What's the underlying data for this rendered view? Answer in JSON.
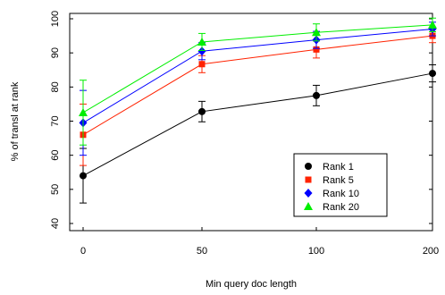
{
  "chart_data": {
    "type": "line",
    "xlabel": "Min query doc length",
    "ylabel": "% of transl at rank",
    "categories": [
      "0",
      "50",
      "100",
      "200"
    ],
    "x_tick_labels": [
      "0",
      "50",
      "100",
      "200"
    ],
    "y_tick_labels": [
      "40",
      "50",
      "60",
      "70",
      "80",
      "90",
      "100"
    ],
    "ylim": [
      40,
      100
    ],
    "grid": false,
    "legend_position": "bottom-right",
    "series": [
      {
        "name": "Rank 1",
        "color": "#000000",
        "marker": "circle",
        "values": [
          54,
          72.8,
          77.5,
          84
        ],
        "errors": [
          8,
          3,
          3,
          2.5
        ]
      },
      {
        "name": "Rank 5",
        "color": "#ff2200",
        "marker": "square",
        "values": [
          66,
          86.7,
          91,
          95
        ],
        "errors": [
          9,
          2.5,
          2.5,
          2
        ]
      },
      {
        "name": "Rank 10",
        "color": "#0000ff",
        "marker": "diamond",
        "values": [
          69.5,
          90.5,
          93.8,
          97
        ],
        "errors": [
          9.5,
          2.5,
          2.5,
          2
        ]
      },
      {
        "name": "Rank 20",
        "color": "#00ee00",
        "marker": "triangle",
        "values": [
          72.5,
          93.2,
          96,
          98.2
        ],
        "errors": [
          9.5,
          2.5,
          2.5,
          2
        ]
      }
    ]
  }
}
